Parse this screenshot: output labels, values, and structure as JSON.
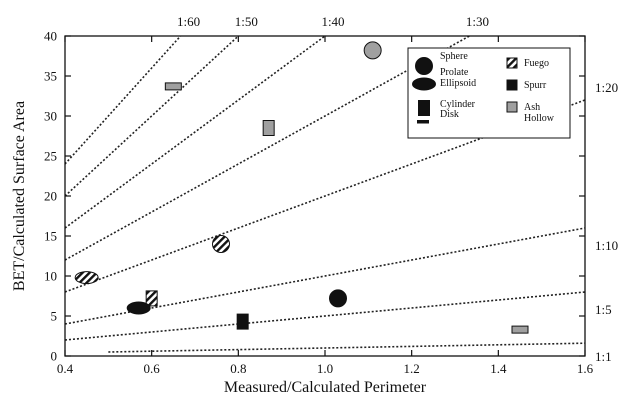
{
  "chart_data": {
    "type": "scatter",
    "xlabel": "Measured/Calculated Perimeter",
    "ylabel": "BET/Calculated Surface Area",
    "xlim": [
      0.4,
      1.6
    ],
    "ylim": [
      0,
      40
    ],
    "x_ticks": [
      0.4,
      0.6,
      0.8,
      1.0,
      1.2,
      1.4,
      1.6
    ],
    "x_tick_labels": [
      "0.4",
      "0.6",
      "0.8",
      "1.0",
      "1.2",
      "1.4",
      "1.6"
    ],
    "y_ticks": [
      0,
      5,
      10,
      15,
      20,
      25,
      30,
      35,
      40
    ],
    "y_tick_labels": [
      "0",
      "5",
      "10",
      "15",
      "20",
      "25",
      "30",
      "35",
      "40"
    ],
    "grid": false,
    "legend_position": "top-right",
    "ratio_lines": [
      {
        "label": "1:60",
        "slope": 60
      },
      {
        "label": "1:50",
        "slope": 50
      },
      {
        "label": "1:40",
        "slope": 40
      },
      {
        "label": "1:30",
        "slope": 30
      },
      {
        "label": "1:20",
        "slope": 20
      },
      {
        "label": "1:10",
        "slope": 10
      },
      {
        "label": "1:5",
        "slope": 5
      },
      {
        "label": "1:1",
        "slope": 1
      }
    ],
    "shape_legend": [
      {
        "name": "Sphere",
        "shape": "sphere"
      },
      {
        "name": "Prolate\nEllipsoid",
        "shape": "prolate"
      },
      {
        "name": "Cylinder",
        "shape": "cylinder"
      },
      {
        "name": "Disk",
        "shape": "disk"
      }
    ],
    "sample_legend": [
      {
        "name": "Fuego",
        "fill": "hatch"
      },
      {
        "name": "Spurr",
        "fill": "#111111"
      },
      {
        "name": "Ash\nHollow",
        "fill": "#a0a0a0"
      }
    ],
    "points": [
      {
        "x": 0.65,
        "y": 33.7,
        "shape": "disk",
        "sample": "Ash Hollow"
      },
      {
        "x": 1.11,
        "y": 38.2,
        "shape": "sphere",
        "sample": "Ash Hollow"
      },
      {
        "x": 0.87,
        "y": 28.5,
        "shape": "cylinder",
        "sample": "Ash Hollow"
      },
      {
        "x": 1.45,
        "y": 3.3,
        "shape": "disk",
        "sample": "Ash Hollow"
      },
      {
        "x": 0.76,
        "y": 14.0,
        "shape": "sphere",
        "sample": "Fuego"
      },
      {
        "x": 0.45,
        "y": 9.8,
        "shape": "prolate",
        "sample": "Fuego"
      },
      {
        "x": 0.6,
        "y": 7.2,
        "shape": "cylinder",
        "sample": "Fuego"
      },
      {
        "x": 0.57,
        "y": 6.0,
        "shape": "prolate",
        "sample": "Spurr"
      },
      {
        "x": 0.81,
        "y": 4.3,
        "shape": "cylinder",
        "sample": "Spurr"
      },
      {
        "x": 1.03,
        "y": 7.2,
        "shape": "sphere",
        "sample": "Spurr"
      }
    ]
  }
}
